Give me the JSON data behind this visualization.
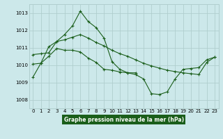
{
  "title": "Graphe pression niveau de la mer (hPa)",
  "background_color": "#cce8ea",
  "grid_color": "#b0cece",
  "line_color": "#1a5e1a",
  "marker_color": "#1a5e1a",
  "xlim": [
    -0.5,
    23.5
  ],
  "ylim": [
    1007.5,
    1013.5
  ],
  "yticks": [
    1008,
    1009,
    1010,
    1011,
    1012,
    1013
  ],
  "xticks": [
    0,
    1,
    2,
    3,
    4,
    5,
    6,
    7,
    8,
    9,
    10,
    11,
    12,
    13,
    14,
    15,
    16,
    17,
    18,
    19,
    20,
    21,
    22,
    23
  ],
  "series1_x": [
    0,
    1,
    2,
    3,
    4,
    5,
    6,
    7,
    8,
    9,
    10,
    11,
    12,
    13
  ],
  "series1_y": [
    1009.3,
    1010.1,
    1011.05,
    1011.35,
    1011.75,
    1012.25,
    1013.1,
    1012.5,
    1012.15,
    1011.55,
    1010.2,
    1009.75,
    1009.55,
    1009.55
  ],
  "series2_x": [
    0,
    1,
    2,
    3,
    4,
    5,
    6,
    7,
    8,
    9,
    10,
    11,
    12,
    13,
    14,
    15,
    16,
    17,
    18,
    19,
    20,
    21,
    22,
    23
  ],
  "series2_y": [
    1010.6,
    1010.65,
    1010.7,
    1011.35,
    1011.45,
    1011.6,
    1011.75,
    1011.55,
    1011.3,
    1011.1,
    1010.85,
    1010.65,
    1010.5,
    1010.3,
    1010.1,
    1009.95,
    1009.82,
    1009.7,
    1009.62,
    1009.55,
    1009.5,
    1009.45,
    1010.15,
    1010.45
  ],
  "series3_x": [
    0,
    1,
    2,
    3,
    4,
    5,
    6,
    7,
    8,
    9,
    10,
    11,
    12,
    13,
    14,
    15,
    16,
    17,
    18,
    19,
    20,
    21,
    22,
    23
  ],
  "series3_y": [
    1010.05,
    1010.1,
    1010.5,
    1010.95,
    1010.85,
    1010.85,
    1010.75,
    1010.4,
    1010.15,
    1009.75,
    1009.7,
    1009.6,
    1009.55,
    1009.45,
    1009.2,
    1008.35,
    1008.3,
    1008.45,
    1009.2,
    1009.75,
    1009.8,
    1009.85,
    1010.3,
    1010.45
  ]
}
